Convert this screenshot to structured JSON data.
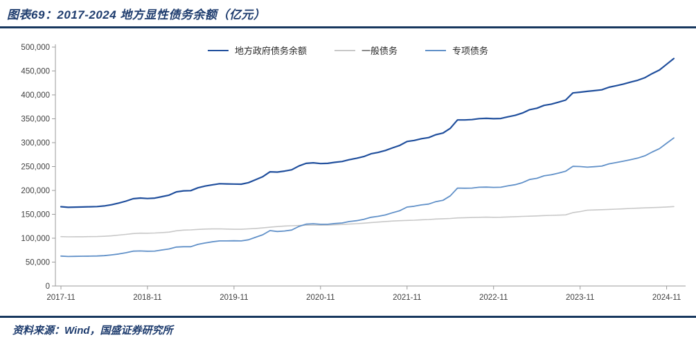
{
  "header": {
    "title": "图表69：2017-2024 地方显性债务余额（亿元）"
  },
  "footer": {
    "source": "资料来源：Wind，国盛证券研究所"
  },
  "chart_data": {
    "type": "line",
    "title": "2017-2024 地方显性债务余额",
    "unit": "亿元",
    "x_start": "2017-11",
    "x_end": "2024-12",
    "frequency": "monthly",
    "x_ticks": [
      "2017-11",
      "2018-11",
      "2019-11",
      "2020-11",
      "2021-11",
      "2022-11",
      "2023-11",
      "2024-11"
    ],
    "y_ticks": [
      "0",
      "50,000",
      "100,000",
      "150,000",
      "200,000",
      "250,000",
      "300,000",
      "350,000",
      "400,000",
      "450,000",
      "500,000"
    ],
    "ylim": [
      0,
      500000
    ],
    "y_step": 50000,
    "grid": false,
    "legend_position": "top-center",
    "axis_color": "#9a9a9a",
    "tick_label_color": "#404040",
    "series": [
      {
        "key": "total",
        "name": "地方政府债务余额",
        "color": "#1f4e9c",
        "width": 2.2,
        "values": [
          165900,
          164700,
          165100,
          165400,
          165800,
          166300,
          167500,
          170000,
          173500,
          177500,
          182600,
          184000,
          183100,
          183900,
          187000,
          190200,
          197000,
          199100,
          199600,
          205500,
          209100,
          211800,
          214000,
          213600,
          213300,
          213100,
          216300,
          222500,
          228800,
          239000,
          238400,
          240500,
          243200,
          251200,
          256600,
          257800,
          256300,
          256600,
          258800,
          260600,
          264400,
          267200,
          270900,
          276600,
          279600,
          283600,
          289200,
          294300,
          302500,
          304700,
          308200,
          310600,
          316600,
          320100,
          330000,
          347500,
          347600,
          348200,
          350300,
          350900,
          350100,
          350600,
          354000,
          357100,
          362000,
          369000,
          372100,
          378000,
          380600,
          384600,
          389100,
          404000,
          405600,
          407400,
          408900,
          410600,
          416000,
          419100,
          422600,
          426600,
          430600,
          436100,
          444600,
          452100,
          464100,
          476100
        ]
      },
      {
        "key": "general",
        "name": "一般债务",
        "color": "#c8c8c8",
        "width": 1.6,
        "values": [
          103300,
          102900,
          103000,
          103100,
          103300,
          103500,
          104000,
          105000,
          106500,
          108000,
          109700,
          110600,
          110400,
          110900,
          111700,
          112700,
          115500,
          116900,
          117400,
          118400,
          119100,
          119400,
          119600,
          119200,
          118700,
          118700,
          119600,
          120500,
          121600,
          123000,
          124400,
          125500,
          126100,
          126500,
          127200,
          127500,
          127200,
          127400,
          128100,
          128700,
          129500,
          130500,
          131400,
          132800,
          133800,
          134900,
          135900,
          136600,
          137300,
          137700,
          138500,
          139100,
          140100,
          140700,
          141300,
          142500,
          142900,
          143300,
          143700,
          144000,
          143700,
          143900,
          144500,
          145000,
          145600,
          146100,
          146700,
          147400,
          147800,
          148300,
          148800,
          153500,
          155600,
          158700,
          159200,
          159700,
          160300,
          160800,
          161400,
          162300,
          162900,
          163500,
          164100,
          164700,
          165400,
          166300
        ]
      },
      {
        "key": "special",
        "name": "专项债务",
        "color": "#6090c8",
        "width": 1.8,
        "values": [
          62600,
          61800,
          62100,
          62300,
          62500,
          62800,
          63500,
          65000,
          67000,
          69500,
          72900,
          73400,
          72700,
          73000,
          75300,
          77500,
          81500,
          82200,
          82200,
          87100,
          90000,
          92400,
          94400,
          94400,
          94600,
          94400,
          96700,
          102000,
          107200,
          116000,
          114000,
          115000,
          117100,
          124700,
          129400,
          130300,
          129100,
          129200,
          130700,
          131900,
          134900,
          136700,
          139500,
          143800,
          145800,
          148700,
          153300,
          157700,
          165200,
          167000,
          169700,
          171500,
          176500,
          179400,
          188700,
          205000,
          204700,
          204900,
          206600,
          206900,
          206400,
          206700,
          209500,
          212100,
          216400,
          222900,
          225400,
          230600,
          232800,
          236300,
          240300,
          250500,
          250000,
          248700,
          249700,
          250900,
          255700,
          258300,
          261200,
          264300,
          267700,
          272600,
          280500,
          287400,
          298700,
          309800
        ]
      }
    ]
  }
}
